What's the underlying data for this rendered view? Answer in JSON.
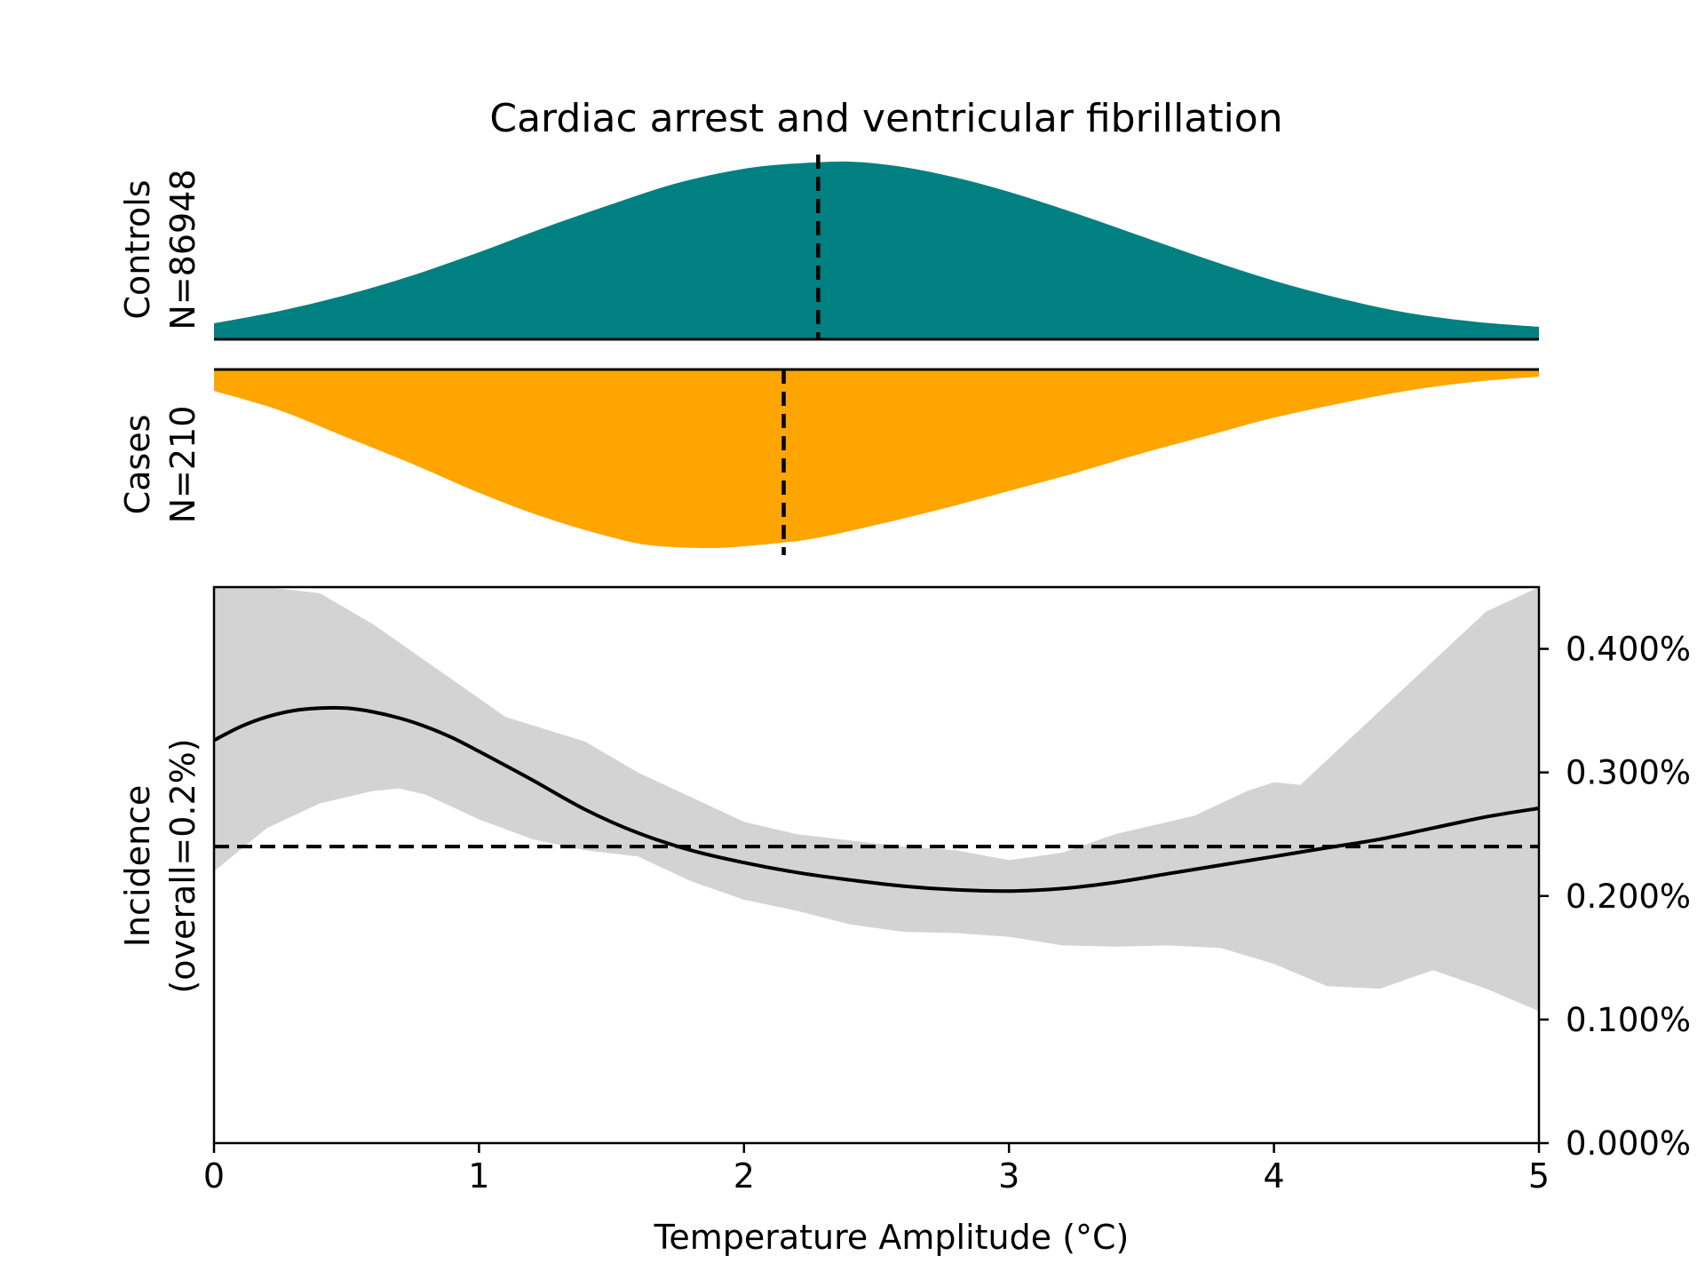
{
  "chart_data": {
    "type": "area",
    "title": "Cardiac arrest and ventricular fibrillation",
    "xlabel": "Temperature Amplitude (°C)",
    "xlim": [
      0,
      5
    ],
    "x_ticks": [
      0,
      1,
      2,
      3,
      4,
      5
    ],
    "x_tick_labels": [
      "0",
      "1",
      "2",
      "3",
      "4",
      "5"
    ],
    "colors": {
      "controls": "#008080",
      "cases": "#FFA500",
      "ci_band": "#D3D3D3",
      "line": "#000000"
    },
    "controls": {
      "label_line1": "Controls",
      "label_line2": "N=86948",
      "x": [
        0,
        0.25,
        0.5,
        0.75,
        1,
        1.25,
        1.5,
        1.75,
        2,
        2.2,
        2.4,
        2.6,
        2.8,
        3,
        3.25,
        3.5,
        3.75,
        4,
        4.25,
        4.5,
        4.75,
        5
      ],
      "density": [
        0.09,
        0.16,
        0.25,
        0.36,
        0.49,
        0.63,
        0.76,
        0.88,
        0.96,
        0.99,
        1.0,
        0.97,
        0.91,
        0.83,
        0.71,
        0.58,
        0.45,
        0.33,
        0.23,
        0.15,
        0.1,
        0.07
      ],
      "mean": 2.28
    },
    "cases": {
      "label_line1": "Cases",
      "label_line2": "N=210",
      "x": [
        0,
        0.25,
        0.5,
        0.75,
        1,
        1.25,
        1.5,
        1.65,
        1.85,
        2,
        2.25,
        2.5,
        2.75,
        3,
        3.25,
        3.5,
        3.75,
        4,
        4.25,
        4.5,
        4.75,
        5
      ],
      "density": [
        0.12,
        0.23,
        0.38,
        0.53,
        0.69,
        0.83,
        0.94,
        0.985,
        1.0,
        0.99,
        0.95,
        0.87,
        0.78,
        0.68,
        0.58,
        0.47,
        0.37,
        0.27,
        0.19,
        0.12,
        0.07,
        0.04
      ],
      "mean": 2.15
    },
    "incidence": {
      "ylabel_line1": "Incidence",
      "ylabel_line2": "(overall=0.2%)",
      "ylim": [
        0,
        0.0045
      ],
      "y_ticks": [
        0,
        0.001,
        0.002,
        0.003,
        0.004
      ],
      "y_tick_labels": [
        "0.000%",
        "0.100%",
        "0.200%",
        "0.300%",
        "0.400%"
      ],
      "overall": 0.0024,
      "line": {
        "x": [
          0,
          0.1,
          0.2,
          0.3,
          0.4,
          0.5,
          0.6,
          0.7,
          0.8,
          0.9,
          1,
          1.2,
          1.4,
          1.6,
          1.8,
          2,
          2.2,
          2.4,
          2.6,
          2.8,
          3,
          3.2,
          3.4,
          3.6,
          3.8,
          4,
          4.2,
          4.4,
          4.6,
          4.8,
          5
        ],
        "y": [
          0.00326,
          0.00337,
          0.00345,
          0.0035,
          0.00352,
          0.00352,
          0.00349,
          0.00344,
          0.00337,
          0.00328,
          0.00317,
          0.00294,
          0.0027,
          0.00251,
          0.00237,
          0.00227,
          0.00219,
          0.00213,
          0.00208,
          0.00205,
          0.00204,
          0.00206,
          0.00211,
          0.00218,
          0.00225,
          0.00232,
          0.00239,
          0.00246,
          0.00255,
          0.00264,
          0.00271
        ]
      },
      "ci_upper": {
        "x": [
          0,
          0.2,
          0.4,
          0.6,
          0.8,
          1.0,
          1.1,
          1.4,
          1.6,
          1.8,
          2.0,
          2.2,
          2.4,
          2.6,
          2.8,
          3.0,
          3.2,
          3.4,
          3.7,
          3.9,
          4.0,
          4.1,
          4.2,
          4.4,
          4.6,
          4.8,
          5.0
        ],
        "y": [
          0.0046,
          0.0046,
          0.00445,
          0.0042,
          0.0039,
          0.0036,
          0.00345,
          0.00325,
          0.003,
          0.0028,
          0.0026,
          0.0025,
          0.00245,
          0.0024,
          0.00237,
          0.00229,
          0.00235,
          0.0025,
          0.00265,
          0.00285,
          0.00292,
          0.0029,
          0.0031,
          0.0035,
          0.0039,
          0.0043,
          0.0046
        ]
      },
      "ci_lower": {
        "x": [
          0,
          0.2,
          0.4,
          0.6,
          0.7,
          0.8,
          1.0,
          1.2,
          1.4,
          1.6,
          1.8,
          2.0,
          2.2,
          2.4,
          2.6,
          2.8,
          3.0,
          3.2,
          3.4,
          3.6,
          3.8,
          4.0,
          4.2,
          4.4,
          4.6,
          4.8,
          5.0
        ],
        "y": [
          0.0022,
          0.00255,
          0.00275,
          0.00285,
          0.00287,
          0.00282,
          0.00262,
          0.00246,
          0.00237,
          0.00232,
          0.00212,
          0.00197,
          0.00188,
          0.00177,
          0.00171,
          0.0017,
          0.00167,
          0.0016,
          0.00159,
          0.0016,
          0.00158,
          0.00145,
          0.00127,
          0.00125,
          0.0014,
          0.00125,
          0.00107
        ]
      }
    }
  }
}
